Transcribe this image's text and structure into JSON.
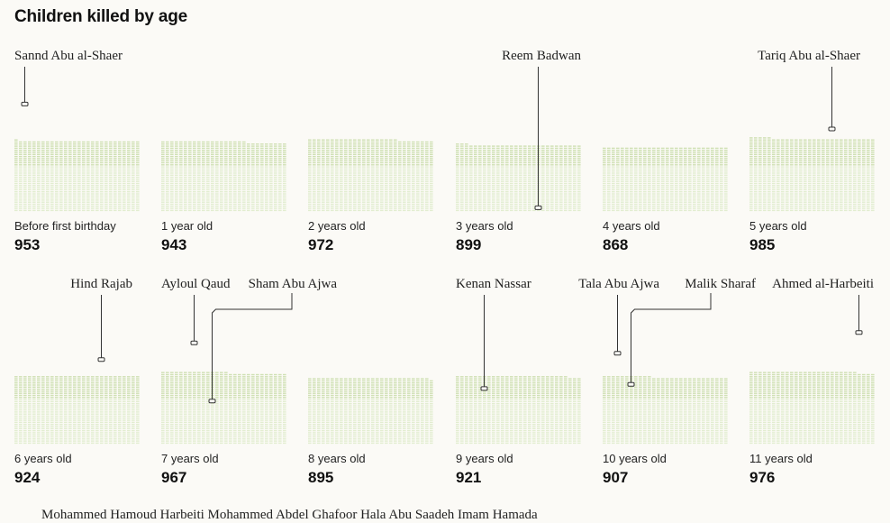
{
  "title": "Children killed by age",
  "colors": {
    "dot": "#cfe0b3",
    "dot_light": "#e2edd0",
    "marker": "#333333"
  },
  "chart_data": {
    "type": "waffle",
    "title": "Children killed by age",
    "panels": [
      {
        "age": "Before first birthday",
        "count": 953,
        "names": [
          "Sannd Abu al-Shaer"
        ]
      },
      {
        "age": "1 year old",
        "count": 943,
        "names": []
      },
      {
        "age": "2 years old",
        "count": 972,
        "names": []
      },
      {
        "age": "3 years old",
        "count": 899,
        "names": [
          "Reem Badwan"
        ]
      },
      {
        "age": "4 years old",
        "count": 868,
        "names": []
      },
      {
        "age": "5 years old",
        "count": 985,
        "names": [
          "Tariq Abu al-Shaer"
        ]
      },
      {
        "age": "6 years old",
        "count": 924,
        "names": [
          "Hind Rajab"
        ]
      },
      {
        "age": "7 years old",
        "count": 967,
        "names": [
          "Ayloul Qaud",
          "Sham Abu Ajwa"
        ]
      },
      {
        "age": "8 years old",
        "count": 895,
        "names": []
      },
      {
        "age": "9 years old",
        "count": 921,
        "names": [
          "Kenan Nassar"
        ]
      },
      {
        "age": "10 years old",
        "count": 907,
        "names": [
          "Tala Abu Ajwa",
          "Malik Sharaf"
        ]
      },
      {
        "age": "11 years old",
        "count": 976,
        "names": [
          "Ahmed al-Harbeiti"
        ]
      }
    ]
  },
  "footer_names": "Mohammed Hamoud Harbeiti   Mohammed Abdel Ghafoor   Hala Abu Saadeh   Imam Hamada"
}
